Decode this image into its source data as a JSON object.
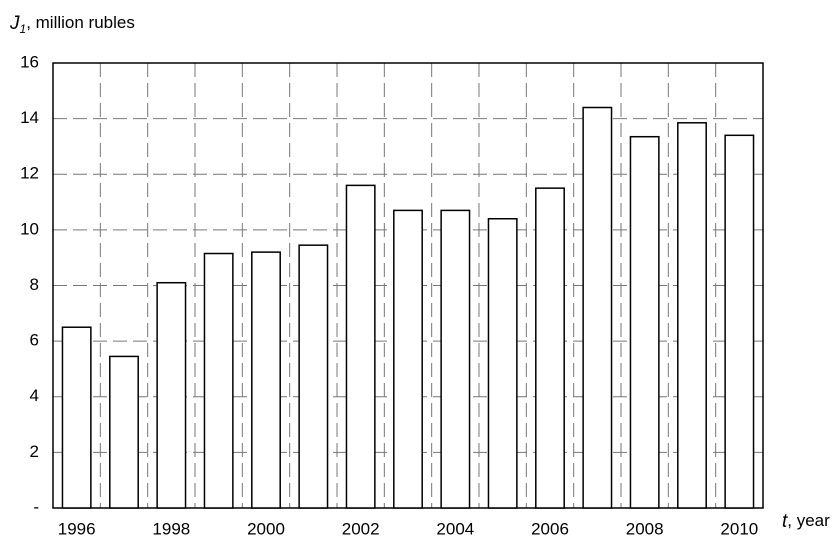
{
  "chart_data": {
    "type": "bar",
    "y_label_symbol": "J",
    "y_label_subscript": "1",
    "y_label_text": ", million rubles",
    "x_label_symbol": "t",
    "x_label_text": ", year",
    "categories": [
      "1996",
      null,
      "1998",
      null,
      "2000",
      null,
      "2002",
      null,
      "2004",
      null,
      "2006",
      null,
      "2008",
      null,
      "2010"
    ],
    "values": [
      6.5,
      5.45,
      8.1,
      9.15,
      9.2,
      9.45,
      11.6,
      10.7,
      10.7,
      10.4,
      11.5,
      14.4,
      13.35,
      13.85,
      13.4
    ],
    "color": "#ffffff",
    "ylim": [
      0,
      16
    ],
    "yticks": [
      {
        "value": 0,
        "label": "-"
      },
      2,
      4,
      6,
      8,
      10,
      12,
      14,
      16
    ],
    "grid": true
  }
}
